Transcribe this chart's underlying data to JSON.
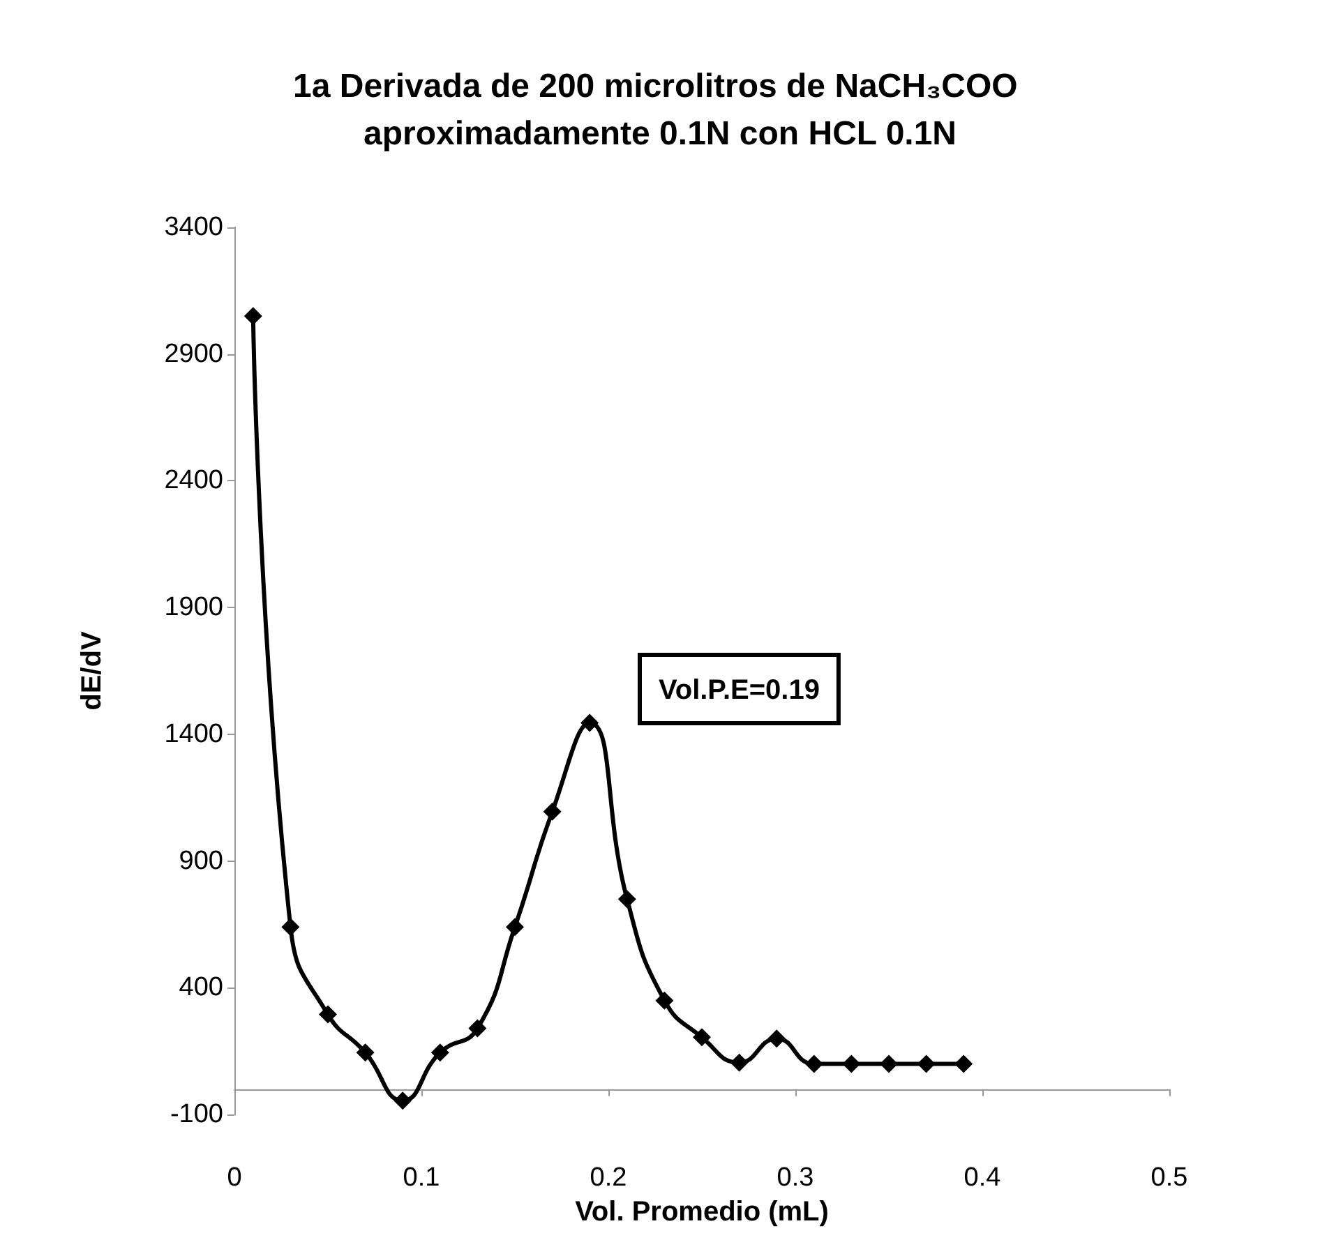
{
  "chart_data": {
    "type": "line",
    "title": "1a Derivada de 200 microlitros de NaCH₃COO aproximadamente 0.1N con HCL 0.1N",
    "xlabel": "Vol. Promedio (mL)",
    "ylabel": "dE/dV",
    "x": [
      0.01,
      0.03,
      0.05,
      0.07,
      0.09,
      0.11,
      0.13,
      0.15,
      0.17,
      0.19,
      0.21,
      0.23,
      0.25,
      0.27,
      0.29,
      0.31,
      0.33,
      0.35,
      0.37,
      0.39
    ],
    "series": [
      {
        "color": "#000000",
        "values": [
          3050,
          640,
          295,
          145,
          -45,
          145,
          240,
          640,
          1095,
          1445,
          750,
          350,
          205,
          105,
          200,
          100,
          100,
          100,
          100,
          100
        ]
      }
    ],
    "xlim": [
      0,
      0.5
    ],
    "xticks": [
      0,
      0.1,
      0.2,
      0.3,
      0.4,
      0.5
    ],
    "ylim": [
      -100,
      3400
    ],
    "yticks": [
      -100,
      400,
      900,
      1400,
      1900,
      2400,
      2900,
      3400
    ],
    "annotations": [
      "Vol.P.E=0.19"
    ],
    "marker": "diamond",
    "line_style": "solid",
    "grid": false
  }
}
